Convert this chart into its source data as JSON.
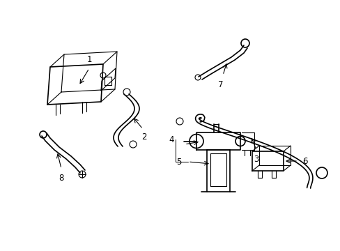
{
  "background_color": "#ffffff",
  "line_color": "#000000",
  "lw": 1.2,
  "tlw": 0.8,
  "fig_width": 4.89,
  "fig_height": 3.6,
  "dpi": 100
}
